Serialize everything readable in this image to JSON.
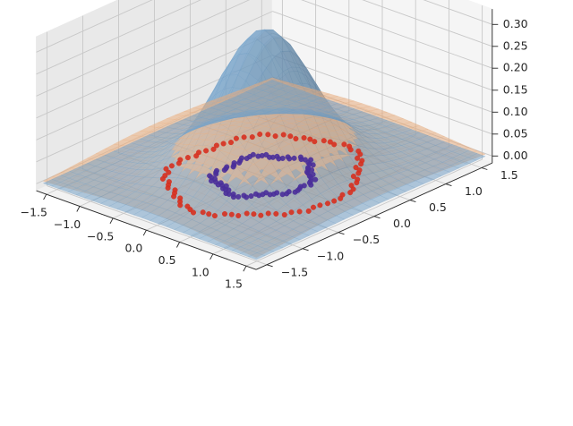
{
  "chart_data": {
    "type": "3d-surface-scatter",
    "x_ticks": [
      "−1.5",
      "−1.0",
      "−0.5",
      "0.0",
      "0.5",
      "1.0",
      "1.5"
    ],
    "y_ticks": [
      "−1.5",
      "−1.0",
      "−0.5",
      "0.0",
      "0.5",
      "1.0",
      "1.5"
    ],
    "z_ticks": [
      "0.00",
      "0.05",
      "0.10",
      "0.15",
      "0.20",
      "0.25",
      "0.30"
    ],
    "x_tick_values": [
      -1.5,
      -1.0,
      -0.5,
      0.0,
      0.5,
      1.0,
      1.5
    ],
    "y_tick_values": [
      -1.5,
      -1.0,
      -0.5,
      0.0,
      0.5,
      1.0,
      1.5
    ],
    "z_tick_values": [
      0.0,
      0.05,
      0.1,
      0.15,
      0.2,
      0.25,
      0.3
    ],
    "xlim": [
      -1.65,
      1.65
    ],
    "ylim": [
      -1.65,
      1.65
    ],
    "zlim": [
      -0.016,
      0.335
    ],
    "surfaces": [
      {
        "function": "gaussian",
        "peak": 0.32,
        "sigma": 0.5,
        "color": "#7aa8cf",
        "opacity": 0.55
      },
      {
        "function": "gaussian",
        "peak": 0.085,
        "sigma": 0.95,
        "color": "#f4b583",
        "opacity": 0.55
      }
    ],
    "scatter": [
      {
        "radius": 0.5,
        "count": 80,
        "color": "#4a2f9a"
      },
      {
        "radius": 1.0,
        "count": 80,
        "color": "#d7301f"
      }
    ],
    "grid": true
  }
}
